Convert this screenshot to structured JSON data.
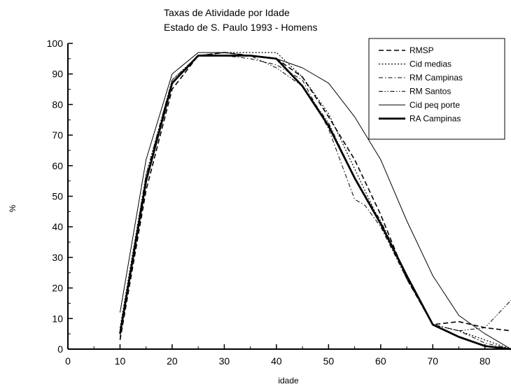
{
  "chart_data": {
    "type": "line",
    "title": "Taxas de Atividade por Idade",
    "subtitle": "Estado de S. Paulo 1993 - Homens",
    "xlabel": "idade",
    "ylabel": "%",
    "xlim": [
      0,
      85
    ],
    "ylim": [
      0,
      100
    ],
    "x_ticks": [
      0,
      10,
      20,
      30,
      40,
      50,
      60,
      70,
      80
    ],
    "y_ticks": [
      0,
      10,
      20,
      30,
      40,
      50,
      60,
      70,
      80,
      90,
      100
    ],
    "grid": false,
    "legend_position": "top-right",
    "series": [
      {
        "name": "RMSP",
        "style": "dashed",
        "x": [
          10,
          15,
          20,
          25,
          30,
          35,
          40,
          45,
          50,
          55,
          60,
          65,
          70,
          75,
          80,
          85
        ],
        "y": [
          3,
          52,
          85,
          96,
          97,
          96,
          95,
          89,
          76,
          62,
          44,
          23,
          8,
          9,
          7,
          6
        ]
      },
      {
        "name": "Cid medias",
        "style": "dotted",
        "x": [
          10,
          15,
          20,
          25,
          30,
          35,
          40,
          45,
          50,
          55,
          60,
          65,
          70,
          75,
          80,
          85
        ],
        "y": [
          7,
          57,
          88,
          96,
          97,
          97,
          97,
          89,
          77,
          59,
          41,
          23,
          8,
          6,
          3,
          0
        ]
      },
      {
        "name": "RM Campinas",
        "style": "dashdot",
        "x": [
          10,
          15,
          20,
          25,
          30,
          35,
          40,
          45,
          50,
          55,
          57,
          60,
          65,
          70,
          75,
          80,
          85
        ],
        "y": [
          4,
          55,
          87,
          96,
          96,
          95,
          93,
          88,
          72,
          49,
          47,
          40,
          23,
          8,
          6,
          2,
          0
        ]
      },
      {
        "name": "RM Santos",
        "style": "dashdotdot",
        "x": [
          10,
          15,
          20,
          25,
          30,
          35,
          40,
          45,
          50,
          55,
          60,
          65,
          70,
          75,
          80,
          85
        ],
        "y": [
          6,
          57,
          88,
          96,
          97,
          96,
          92,
          86,
          74,
          56,
          42,
          24,
          8,
          6,
          7,
          16
        ]
      },
      {
        "name": "Cid peq porte",
        "style": "thin",
        "x": [
          10,
          15,
          20,
          25,
          30,
          35,
          40,
          45,
          50,
          55,
          60,
          65,
          70,
          75,
          80,
          85
        ],
        "y": [
          12,
          62,
          90,
          97,
          97,
          96,
          95,
          92,
          87,
          76,
          62,
          42,
          24,
          11,
          5,
          0
        ]
      },
      {
        "name": "RA Campinas",
        "style": "thick",
        "x": [
          10,
          15,
          20,
          25,
          30,
          35,
          40,
          45,
          50,
          55,
          60,
          65,
          70,
          75,
          80,
          85
        ],
        "y": [
          5,
          55,
          87,
          96,
          96,
          96,
          95,
          86,
          73,
          56,
          41,
          24,
          8,
          4,
          1,
          0
        ]
      }
    ]
  }
}
